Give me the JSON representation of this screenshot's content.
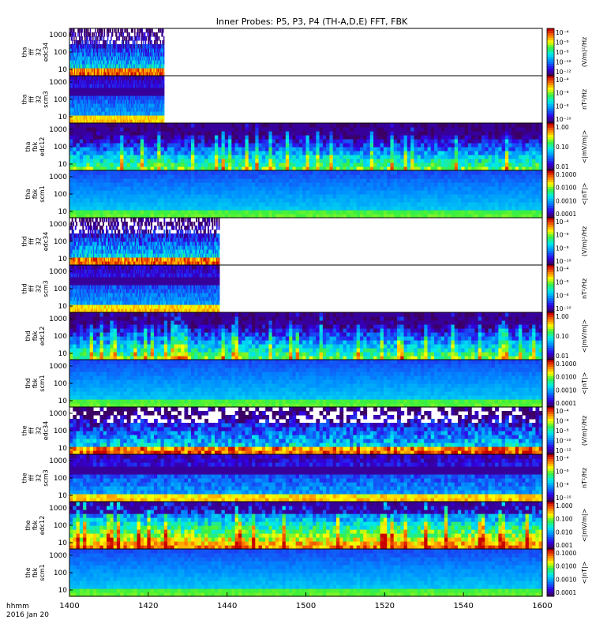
{
  "chart_data": {
    "type": "heatmap",
    "title": "Inner Probes: P5, P3, P4 (TH-A,D,E) FFT, FBK",
    "x_axis": {
      "ticks": [
        "1400",
        "1420",
        "1440",
        "1500",
        "1520",
        "1540",
        "1600"
      ],
      "range": [
        "14:00",
        "16:00"
      ],
      "corner_label_line1": "hhmm",
      "corner_label_line2": "2016 Jan 20"
    },
    "panels": [
      {
        "label": [
          "tha",
          "fff",
          "32",
          "edc34"
        ],
        "yticks": [
          "1000",
          "100",
          "10"
        ],
        "cb_ticks": [
          "10⁻⁴",
          "10⁻⁶",
          "10⁻⁸",
          "10⁻¹⁰",
          "10⁻¹²"
        ],
        "cb_unit": "(V/m)²/Hz",
        "data_end": 0.2,
        "style": "fff_e"
      },
      {
        "label": [
          "tha",
          "fff",
          "32",
          "scm3"
        ],
        "yticks": [
          "1000",
          "100",
          "10"
        ],
        "cb_ticks": [
          "10⁻⁴",
          "10⁻⁶",
          "10⁻⁸",
          "10⁻¹⁰"
        ],
        "cb_unit": "nT²/Hz",
        "data_end": 0.2,
        "style": "fff_b"
      },
      {
        "label": [
          "tha",
          "fbk",
          "edc12"
        ],
        "yticks": [
          "1000",
          "100",
          "10"
        ],
        "cb_ticks": [
          "1.00",
          "0.10",
          "0.01"
        ],
        "cb_unit": "<|mV/m|>",
        "data_end": 1.0,
        "style": "fbk_e"
      },
      {
        "label": [
          "tha",
          "fbk",
          "scm1"
        ],
        "yticks": [
          "1000",
          "100",
          "10"
        ],
        "cb_ticks": [
          "0.1000",
          "0.0100",
          "0.0010",
          "0.0001"
        ],
        "cb_unit": "<|nT|>",
        "data_end": 1.0,
        "style": "fbk_b"
      },
      {
        "label": [
          "thd",
          "fff",
          "32",
          "edc34"
        ],
        "yticks": [
          "1000",
          "100",
          "10"
        ],
        "cb_ticks": [
          "10⁻⁴",
          "10⁻⁶",
          "10⁻⁸",
          "10⁻¹⁰"
        ],
        "cb_unit": "(V/m)²/Hz",
        "data_end": 0.317,
        "style": "fff_e"
      },
      {
        "label": [
          "thd",
          "fff",
          "32",
          "scm3"
        ],
        "yticks": [
          "1000",
          "100",
          "10"
        ],
        "cb_ticks": [
          "10⁻⁴",
          "10⁻⁶",
          "10⁻⁸",
          "10⁻¹⁰"
        ],
        "cb_unit": "nT²/Hz",
        "data_end": 0.317,
        "style": "fff_b"
      },
      {
        "label": [
          "thd",
          "fbk",
          "edc12"
        ],
        "yticks": [
          "1000",
          "100",
          "10"
        ],
        "cb_ticks": [
          "1.00",
          "0.10",
          "0.01"
        ],
        "cb_unit": "<|mV/m|>",
        "data_end": 1.0,
        "style": "fbk_e"
      },
      {
        "label": [
          "thd",
          "fbk",
          "scm1"
        ],
        "yticks": [
          "1000",
          "100",
          "10"
        ],
        "cb_ticks": [
          "0.1000",
          "0.0100",
          "0.0010",
          "0.0001"
        ],
        "cb_unit": "<|nT|>",
        "data_end": 1.0,
        "style": "fbk_b"
      },
      {
        "label": [
          "the",
          "fff",
          "32",
          "edc34"
        ],
        "yticks": [
          "1000",
          "100",
          "10"
        ],
        "cb_ticks": [
          "10⁻⁴",
          "10⁻⁶",
          "10⁻⁸",
          "10⁻¹⁰",
          "10⁻¹²"
        ],
        "cb_unit": "(V/m)²/Hz",
        "data_end": 1.0,
        "style": "fff_e"
      },
      {
        "label": [
          "the",
          "fff",
          "32",
          "scm3"
        ],
        "yticks": [
          "1000",
          "100",
          "10"
        ],
        "cb_ticks": [
          "10⁻⁴",
          "10⁻⁶",
          "10⁻⁸",
          "10⁻¹⁰"
        ],
        "cb_unit": "nT²/Hz",
        "data_end": 1.0,
        "style": "fff_b"
      },
      {
        "label": [
          "the",
          "fbk",
          "edc12"
        ],
        "yticks": [
          "1000",
          "100",
          "10"
        ],
        "cb_ticks": [
          "1.000",
          "0.100",
          "0.010",
          "0.001"
        ],
        "cb_unit": "<|mV/m|>",
        "data_end": 1.0,
        "style": "fbk_e_strong"
      },
      {
        "label": [
          "the",
          "fbk",
          "scm1"
        ],
        "yticks": [
          "1000",
          "100",
          "10"
        ],
        "cb_ticks": [
          "0.1000",
          "0.0100",
          "0.0010",
          "0.0001"
        ],
        "cb_unit": "<|nT|>",
        "data_end": 1.0,
        "style": "fbk_b"
      }
    ],
    "grid": false,
    "legend": "colorbars-right"
  }
}
